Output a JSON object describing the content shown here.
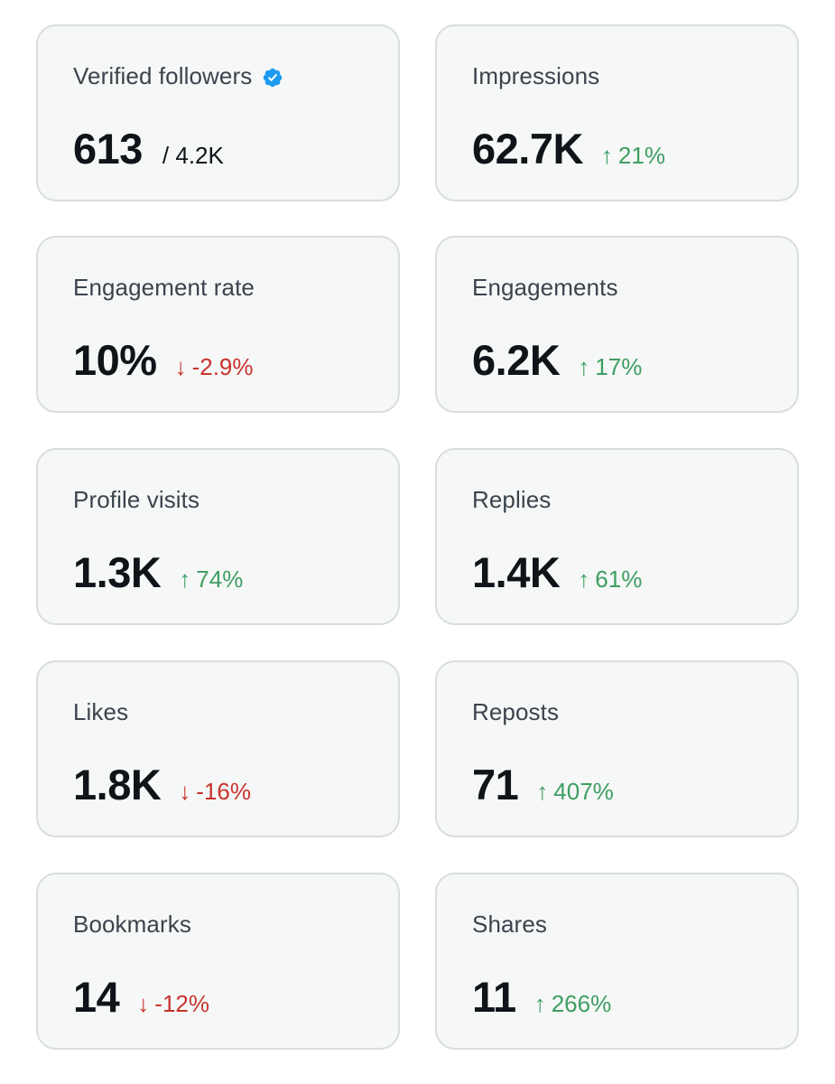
{
  "colors": {
    "card_bg": "#f6f7f7",
    "card_border": "#d8dde0",
    "label": "#3a444d",
    "value": "#0f1419",
    "up": "#3e9e62",
    "down": "#c8342c",
    "verified": "#1d9bf0"
  },
  "metrics": [
    {
      "label": "Verified followers",
      "icon": "verified-badge-icon",
      "value": "613",
      "total": "/ 4.2K"
    },
    {
      "label": "Impressions",
      "value": "62.7K",
      "delta": {
        "arrow": "↑",
        "text": "21%",
        "direction": "up"
      }
    },
    {
      "label": "Engagement rate",
      "value": "10%",
      "delta": {
        "arrow": "↓",
        "text": "-2.9%",
        "direction": "down"
      }
    },
    {
      "label": "Engagements",
      "value": "6.2K",
      "delta": {
        "arrow": "↑",
        "text": "17%",
        "direction": "up"
      }
    },
    {
      "label": "Profile visits",
      "value": "1.3K",
      "delta": {
        "arrow": "↑",
        "text": "74%",
        "direction": "up"
      }
    },
    {
      "label": "Replies",
      "value": "1.4K",
      "delta": {
        "arrow": "↑",
        "text": "61%",
        "direction": "up"
      }
    },
    {
      "label": "Likes",
      "value": "1.8K",
      "delta": {
        "arrow": "↓",
        "text": "-16%",
        "direction": "down"
      }
    },
    {
      "label": "Reposts",
      "value": "71",
      "delta": {
        "arrow": "↑",
        "text": "407%",
        "direction": "up"
      }
    },
    {
      "label": "Bookmarks",
      "value": "14",
      "delta": {
        "arrow": "↓",
        "text": "-12%",
        "direction": "down"
      }
    },
    {
      "label": "Shares",
      "value": "11",
      "delta": {
        "arrow": "↑",
        "text": "266%",
        "direction": "up"
      }
    }
  ]
}
